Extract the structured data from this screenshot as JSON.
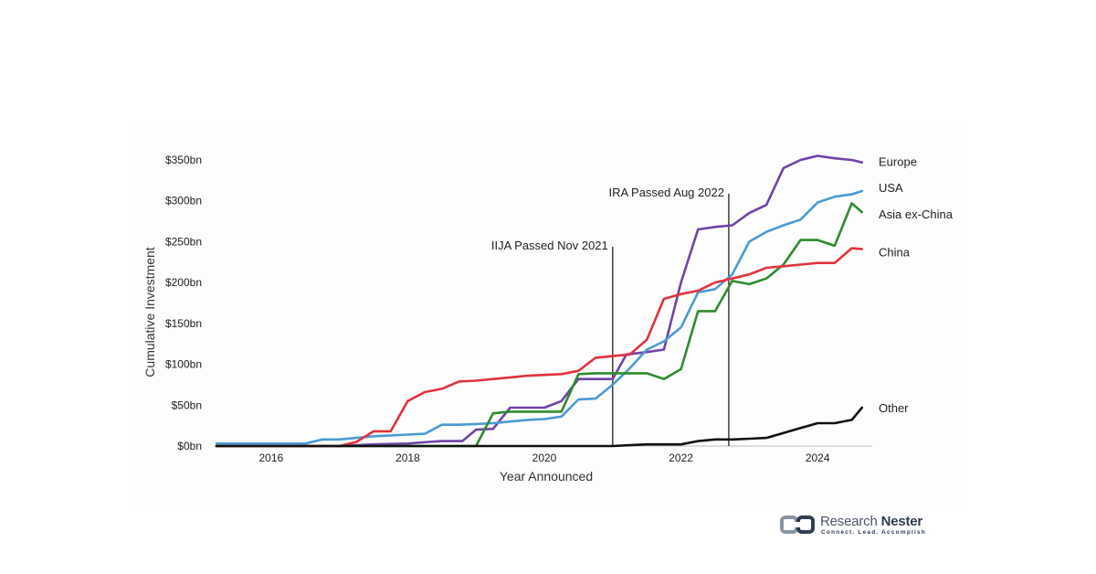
{
  "chart_data": {
    "type": "line",
    "title": "",
    "xlabel": "Year Announced",
    "ylabel": "Cumulative Investment",
    "xlim": [
      2015.2,
      2024.8
    ],
    "ylim": [
      0,
      350
    ],
    "x_ticks": [
      "2016",
      "2018",
      "2020",
      "2022",
      "2024"
    ],
    "y_ticks": [
      "$0bn",
      "$50bn",
      "$100bn",
      "$150bn",
      "$200bn",
      "$250bn",
      "$300bn",
      "$350bn"
    ],
    "legend": "labels at line ends (right)",
    "grid": false,
    "annotations": [
      {
        "text": "IIJA Passed Nov 2021",
        "x": 2021.0
      },
      {
        "text": "IRA Passed Aug 2022",
        "x": 2022.7
      }
    ],
    "series": [
      {
        "name": "Europe",
        "color": "#7043a6",
        "x": [
          2015.2,
          2016,
          2017,
          2017.5,
          2018,
          2018.3,
          2018.5,
          2018.8,
          2019,
          2019.25,
          2019.5,
          2019.75,
          2020,
          2020.25,
          2020.5,
          2020.75,
          2021,
          2021.2,
          2021.5,
          2021.75,
          2022,
          2022.25,
          2022.5,
          2022.75,
          2023,
          2023.25,
          2023.5,
          2023.75,
          2024,
          2024.25,
          2024.5,
          2024.65
        ],
        "y": [
          0,
          0,
          0,
          2,
          3,
          5,
          6,
          6,
          20,
          21,
          47,
          47,
          47,
          55,
          82,
          82,
          82,
          112,
          115,
          118,
          200,
          265,
          268,
          270,
          285,
          295,
          340,
          350,
          355,
          352,
          350,
          347
        ]
      },
      {
        "name": "USA",
        "color": "#4a9ad4",
        "x": [
          2015.2,
          2016,
          2016.5,
          2016.75,
          2017,
          2017.5,
          2018,
          2018.25,
          2018.5,
          2018.75,
          2019,
          2019.25,
          2019.5,
          2019.75,
          2020,
          2020.25,
          2020.5,
          2020.75,
          2021,
          2021.25,
          2021.5,
          2021.75,
          2022,
          2022.25,
          2022.5,
          2022.75,
          2023,
          2023.25,
          2023.5,
          2023.75,
          2024,
          2024.25,
          2024.5,
          2024.65
        ],
        "y": [
          3,
          3,
          3,
          8,
          8,
          12,
          14,
          15,
          26,
          26,
          27,
          28,
          30,
          32,
          33,
          36,
          57,
          58,
          75,
          95,
          118,
          128,
          145,
          188,
          192,
          210,
          250,
          262,
          270,
          277,
          298,
          305,
          308,
          312
        ]
      },
      {
        "name": "Asia ex-China",
        "color": "#2e8b2e",
        "x": [
          2015.2,
          2019,
          2019.25,
          2019.5,
          2020,
          2020.25,
          2020.5,
          2020.75,
          2021,
          2021.25,
          2021.5,
          2021.75,
          2022,
          2022.25,
          2022.5,
          2022.75,
          2023,
          2023.25,
          2023.5,
          2023.75,
          2024,
          2024.25,
          2024.5,
          2024.65
        ],
        "y": [
          0,
          0,
          40,
          42,
          42,
          42,
          88,
          89,
          89,
          89,
          89,
          82,
          94,
          165,
          165,
          202,
          198,
          205,
          222,
          252,
          252,
          245,
          297,
          286
        ]
      },
      {
        "name": "China",
        "color": "#e0323d",
        "x": [
          2015.2,
          2017,
          2017.25,
          2017.5,
          2017.75,
          2018,
          2018.25,
          2018.5,
          2018.75,
          2019,
          2019.25,
          2019.5,
          2019.75,
          2020,
          2020.25,
          2020.5,
          2020.75,
          2021,
          2021.25,
          2021.5,
          2021.75,
          2022,
          2022.25,
          2022.5,
          2022.75,
          2023,
          2023.25,
          2023.5,
          2023.75,
          2024,
          2024.25,
          2024.5,
          2024.65
        ],
        "y": [
          0,
          0,
          5,
          18,
          18,
          55,
          66,
          70,
          79,
          80,
          82,
          84,
          86,
          87,
          88,
          92,
          108,
          110,
          112,
          130,
          180,
          186,
          190,
          200,
          205,
          210,
          218,
          220,
          222,
          224,
          224,
          242,
          241
        ]
      },
      {
        "name": "Other",
        "color": "#111111",
        "x": [
          2015.2,
          2020.75,
          2021,
          2021.25,
          2021.5,
          2021.75,
          2022,
          2022.25,
          2022.5,
          2022.75,
          2023,
          2023.25,
          2023.5,
          2023.75,
          2024,
          2024.25,
          2024.5,
          2024.65
        ],
        "y": [
          0,
          0,
          0,
          1,
          2,
          2,
          2,
          6,
          8,
          8,
          9,
          10,
          16,
          22,
          28,
          28,
          32,
          47
        ]
      }
    ]
  },
  "logo": {
    "name_light": "Research",
    "name_bold": "Nester",
    "tagline": "Connect. Lead. Accomplish"
  }
}
